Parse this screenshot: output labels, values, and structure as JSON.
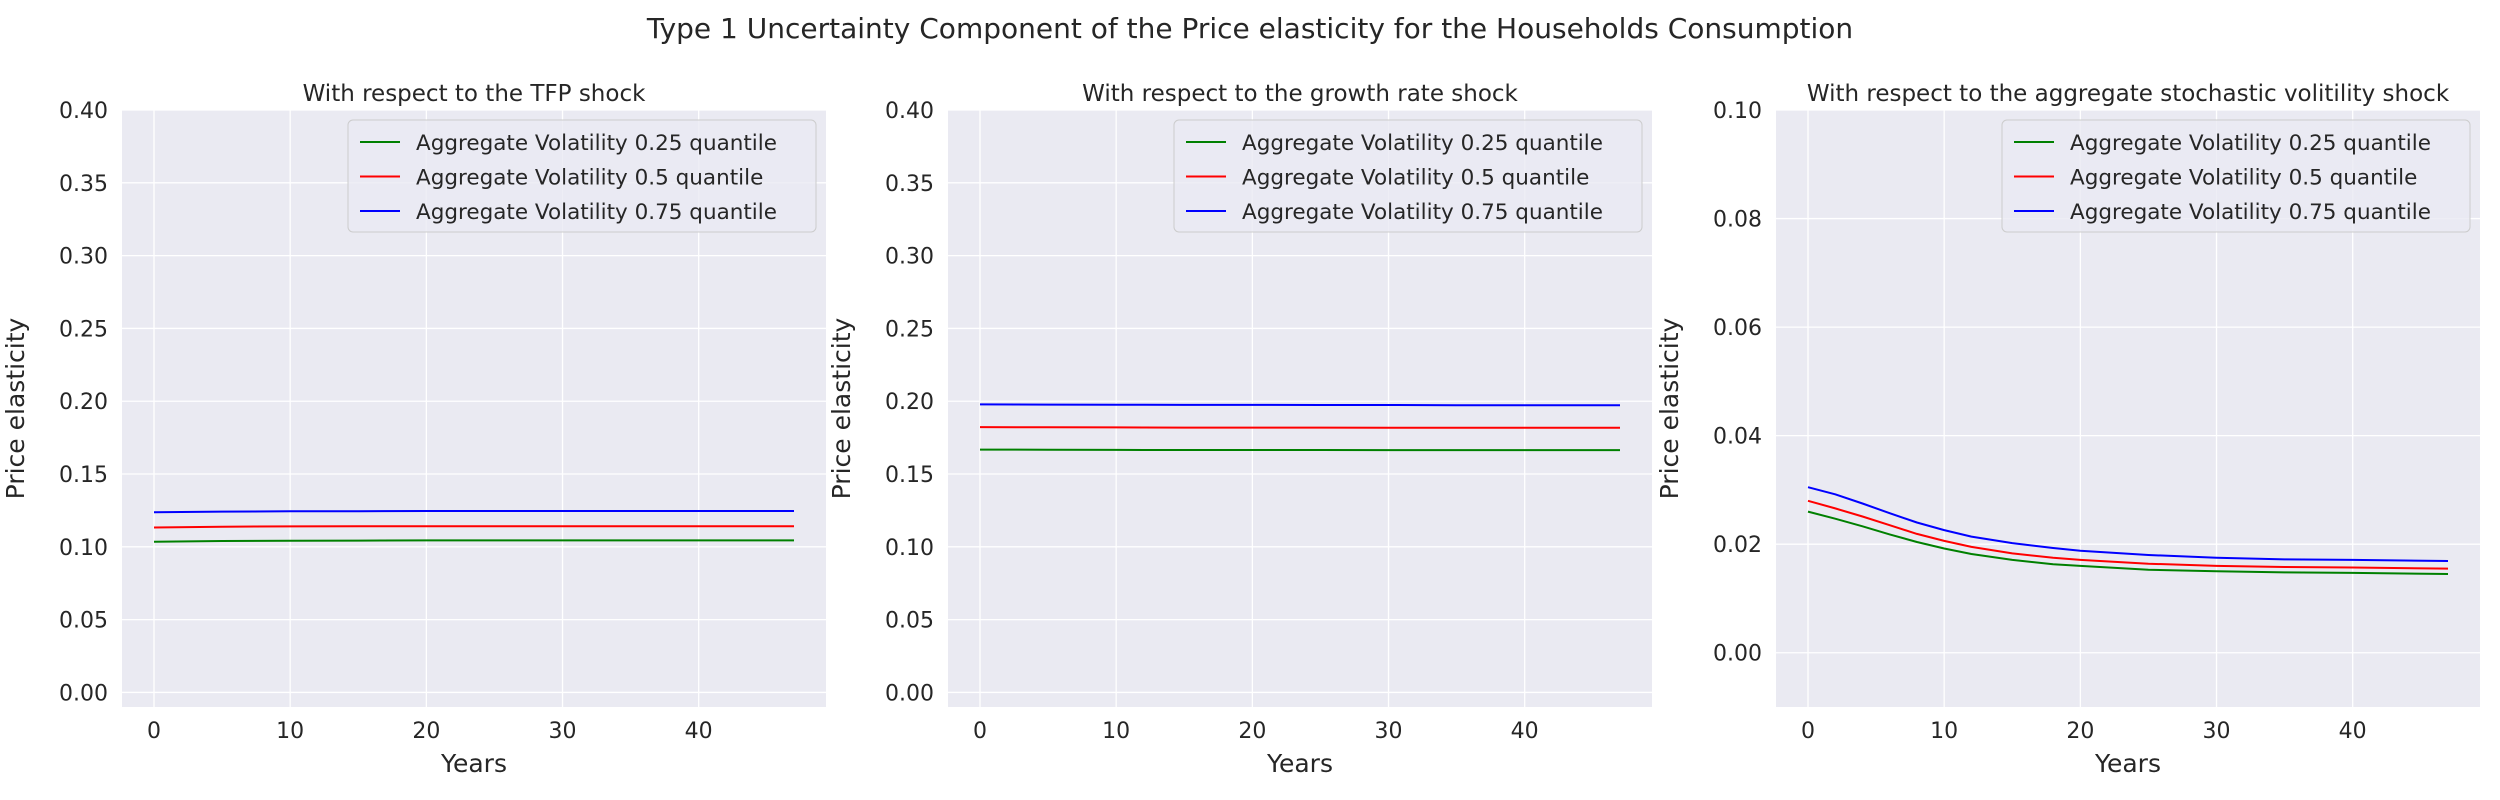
{
  "figure": {
    "title": "Type 1 Uncertainty Component of the Price elasticity for the Households Consumption"
  },
  "chart_data": [
    {
      "type": "line",
      "title": "With respect to the TFP shock",
      "xlabel": "Years",
      "ylabel": "Price elasticity",
      "xlim": [
        -2.35,
        49.35
      ],
      "ylim": [
        -0.01,
        0.4
      ],
      "xticks": [
        0,
        10,
        20,
        30,
        40
      ],
      "yticks": [
        0.0,
        0.05,
        0.1,
        0.15,
        0.2,
        0.25,
        0.3,
        0.35,
        0.4
      ],
      "ytick_labels": [
        "0.00",
        "0.05",
        "0.10",
        "0.15",
        "0.20",
        "0.25",
        "0.30",
        "0.35",
        "0.40"
      ],
      "legend": "top-right",
      "x": [
        0,
        5,
        10,
        15,
        20,
        25,
        30,
        35,
        40,
        47
      ],
      "series": [
        {
          "name": "Aggregate Volatility 0.25 quantile",
          "color": "#008000",
          "values": [
            0.1035,
            0.104,
            0.1042,
            0.1043,
            0.1044,
            0.1044,
            0.1044,
            0.1044,
            0.1044,
            0.1044
          ]
        },
        {
          "name": "Aggregate Volatility 0.5 quantile",
          "color": "#ff0000",
          "values": [
            0.1133,
            0.1138,
            0.114,
            0.1141,
            0.1142,
            0.1142,
            0.1142,
            0.1142,
            0.1142,
            0.1142
          ]
        },
        {
          "name": "Aggregate Volatility 0.75 quantile",
          "color": "#0000ff",
          "values": [
            0.1238,
            0.1242,
            0.1244,
            0.1245,
            0.1246,
            0.1246,
            0.1246,
            0.1246,
            0.1246,
            0.1246
          ]
        }
      ]
    },
    {
      "type": "line",
      "title": "With respect to the growth rate shock",
      "xlabel": "Years",
      "ylabel": "Price elasticity",
      "xlim": [
        -2.35,
        49.35
      ],
      "ylim": [
        -0.01,
        0.4
      ],
      "xticks": [
        0,
        10,
        20,
        30,
        40
      ],
      "yticks": [
        0.0,
        0.05,
        0.1,
        0.15,
        0.2,
        0.25,
        0.3,
        0.35,
        0.4
      ],
      "ytick_labels": [
        "0.00",
        "0.05",
        "0.10",
        "0.15",
        "0.20",
        "0.25",
        "0.30",
        "0.35",
        "0.40"
      ],
      "legend": "top-right",
      "x": [
        0,
        5,
        10,
        15,
        20,
        25,
        30,
        35,
        40,
        47
      ],
      "series": [
        {
          "name": "Aggregate Volatility 0.25 quantile",
          "color": "#008000",
          "values": [
            0.1668,
            0.1667,
            0.1666,
            0.1665,
            0.1665,
            0.1665,
            0.1664,
            0.1664,
            0.1664,
            0.1664
          ]
        },
        {
          "name": "Aggregate Volatility 0.5 quantile",
          "color": "#ff0000",
          "values": [
            0.1822,
            0.1821,
            0.182,
            0.1819,
            0.1819,
            0.1819,
            0.1818,
            0.1818,
            0.1818,
            0.1818
          ]
        },
        {
          "name": "Aggregate Volatility 0.75 quantile",
          "color": "#0000ff",
          "values": [
            0.1978,
            0.1977,
            0.1976,
            0.1975,
            0.1975,
            0.1974,
            0.1974,
            0.1973,
            0.1973,
            0.1973
          ]
        }
      ]
    },
    {
      "type": "line",
      "title": "With respect to the aggregate stochastic volitility shock",
      "xlabel": "Years",
      "ylabel": "Price elasticity",
      "xlim": [
        -2.35,
        49.35
      ],
      "ylim": [
        -0.01,
        0.1
      ],
      "xticks": [
        0,
        10,
        20,
        30,
        40
      ],
      "yticks": [
        0.0,
        0.02,
        0.04,
        0.06,
        0.08,
        0.1
      ],
      "ytick_labels": [
        "0.00",
        "0.02",
        "0.04",
        "0.06",
        "0.08",
        "0.10"
      ],
      "legend": "top-right",
      "x": [
        0,
        2,
        4,
        6,
        8,
        10,
        12,
        15,
        18,
        20,
        25,
        30,
        35,
        40,
        47
      ],
      "series": [
        {
          "name": "Aggregate Volatility 0.25 quantile",
          "color": "#008000",
          "values": [
            0.026,
            0.0247,
            0.0233,
            0.0218,
            0.0204,
            0.0192,
            0.0182,
            0.0171,
            0.0163,
            0.016,
            0.0153,
            0.015,
            0.0148,
            0.0147,
            0.0145
          ]
        },
        {
          "name": "Aggregate Volatility 0.5 quantile",
          "color": "#ff0000",
          "values": [
            0.028,
            0.0266,
            0.0251,
            0.0235,
            0.0219,
            0.0206,
            0.0195,
            0.0183,
            0.0175,
            0.0171,
            0.0164,
            0.016,
            0.0158,
            0.0157,
            0.0155
          ]
        },
        {
          "name": "Aggregate Volatility 0.75 quantile",
          "color": "#0000ff",
          "values": [
            0.0305,
            0.0292,
            0.0275,
            0.0257,
            0.024,
            0.0226,
            0.0214,
            0.0202,
            0.0193,
            0.0188,
            0.018,
            0.0175,
            0.0172,
            0.0171,
            0.0169
          ]
        }
      ]
    }
  ]
}
